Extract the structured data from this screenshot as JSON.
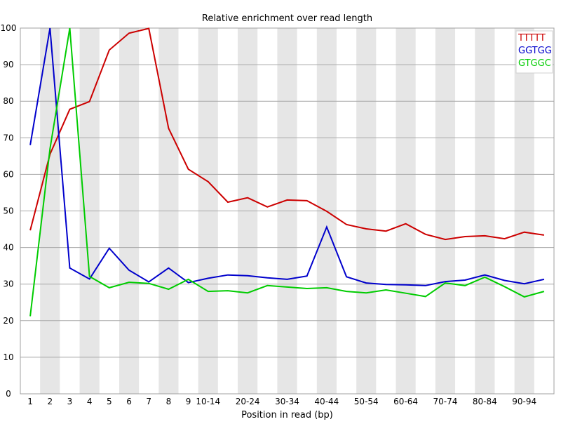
{
  "chart_data": {
    "type": "line",
    "title": "Relative enrichment over read length",
    "xlabel": "Position in read (bp)",
    "ylabel": "",
    "ylim": [
      0,
      100
    ],
    "yticks": [
      0,
      10,
      20,
      30,
      40,
      50,
      60,
      70,
      80,
      90,
      100
    ],
    "categories": [
      "1",
      "2",
      "3",
      "4",
      "5",
      "6",
      "7",
      "8",
      "9",
      "10-14",
      "15-19",
      "20-24",
      "25-29",
      "30-34",
      "35-39",
      "40-44",
      "45-49",
      "50-54",
      "55-59",
      "60-64",
      "65-69",
      "70-74",
      "75-79",
      "80-84",
      "85-89",
      "90-94",
      "95-99"
    ],
    "tick_labels": [
      "1",
      "2",
      "3",
      "4",
      "5",
      "6",
      "7",
      "8",
      "9",
      "10-14",
      "",
      "20-24",
      "",
      "30-34",
      "",
      "40-44",
      "",
      "50-54",
      "",
      "60-64",
      "",
      "70-74",
      "",
      "80-84",
      "",
      "90-94",
      ""
    ],
    "grid": true,
    "alternating_bands": true,
    "legend_position": "top-right",
    "series": [
      {
        "name": "TTTTT",
        "color": "#cc0000",
        "values": [
          44.7,
          65.5,
          77.8,
          79.9,
          94.0,
          98.6,
          99.9,
          72.6,
          61.4,
          58.0,
          52.4,
          53.6,
          51.1,
          53.0,
          52.8,
          49.9,
          46.3,
          45.1,
          44.5,
          46.5,
          43.6,
          42.2,
          43.0,
          43.2,
          42.4,
          44.2,
          43.4
        ]
      },
      {
        "name": "GGTGG",
        "color": "#0000cc",
        "values": [
          68.0,
          100.0,
          34.4,
          31.4,
          39.8,
          33.8,
          30.6,
          34.4,
          30.4,
          31.6,
          32.5,
          32.3,
          31.7,
          31.3,
          32.2,
          45.6,
          32.0,
          30.3,
          29.9,
          29.8,
          29.6,
          30.7,
          31.1,
          32.5,
          31.0,
          30.1,
          31.3
        ]
      },
      {
        "name": "GTGGC",
        "color": "#00cc00",
        "values": [
          21.2,
          67.0,
          100.0,
          32.1,
          29.0,
          30.5,
          30.2,
          28.6,
          31.3,
          28.0,
          28.2,
          27.6,
          29.6,
          29.2,
          28.8,
          29.0,
          28.0,
          27.6,
          28.4,
          27.5,
          26.6,
          30.3,
          29.6,
          31.9,
          29.3,
          26.5,
          28.0
        ]
      }
    ]
  }
}
